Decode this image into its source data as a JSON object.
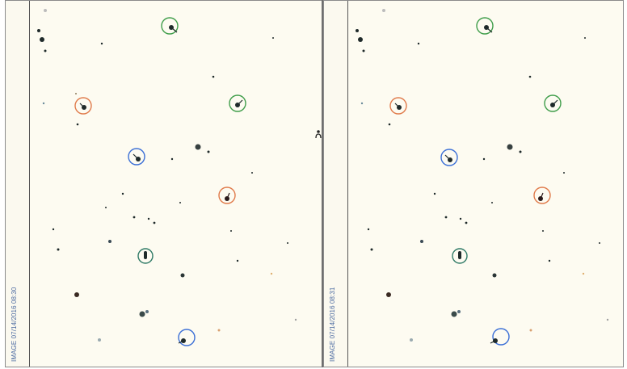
{
  "panels": [
    {
      "id": "left",
      "stamp": "IMAGE 07/14/2016 08:30"
    },
    {
      "id": "right",
      "stamp": "IMAGE 07/14/2016 08:31"
    }
  ],
  "colors": {
    "background": "#fdfbf1",
    "green_marker": "#3f9d4a",
    "orange_marker": "#e07a4a",
    "blue_marker": "#3b6fd6",
    "teal_marker": "#2f7a66",
    "stamp_text": "#4a69a0"
  }
}
